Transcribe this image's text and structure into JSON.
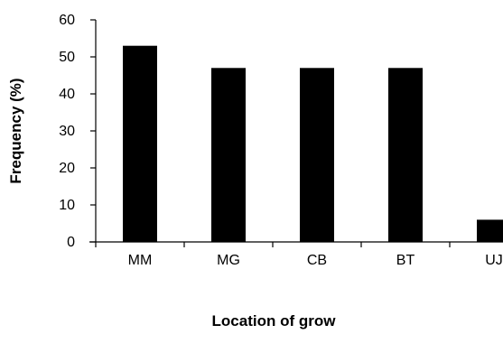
{
  "chart_data": {
    "type": "bar",
    "title": "",
    "xlabel": "Location of grow",
    "ylabel": "Frequency (%)",
    "categories": [
      "MM",
      "MG",
      "CB",
      "BT",
      "UJ"
    ],
    "values": [
      53,
      47,
      47,
      47,
      6
    ],
    "ylim": [
      0,
      60
    ],
    "yticks": [
      0,
      10,
      20,
      30,
      40,
      50,
      60
    ],
    "grid": false,
    "bar_color": "#000000"
  }
}
